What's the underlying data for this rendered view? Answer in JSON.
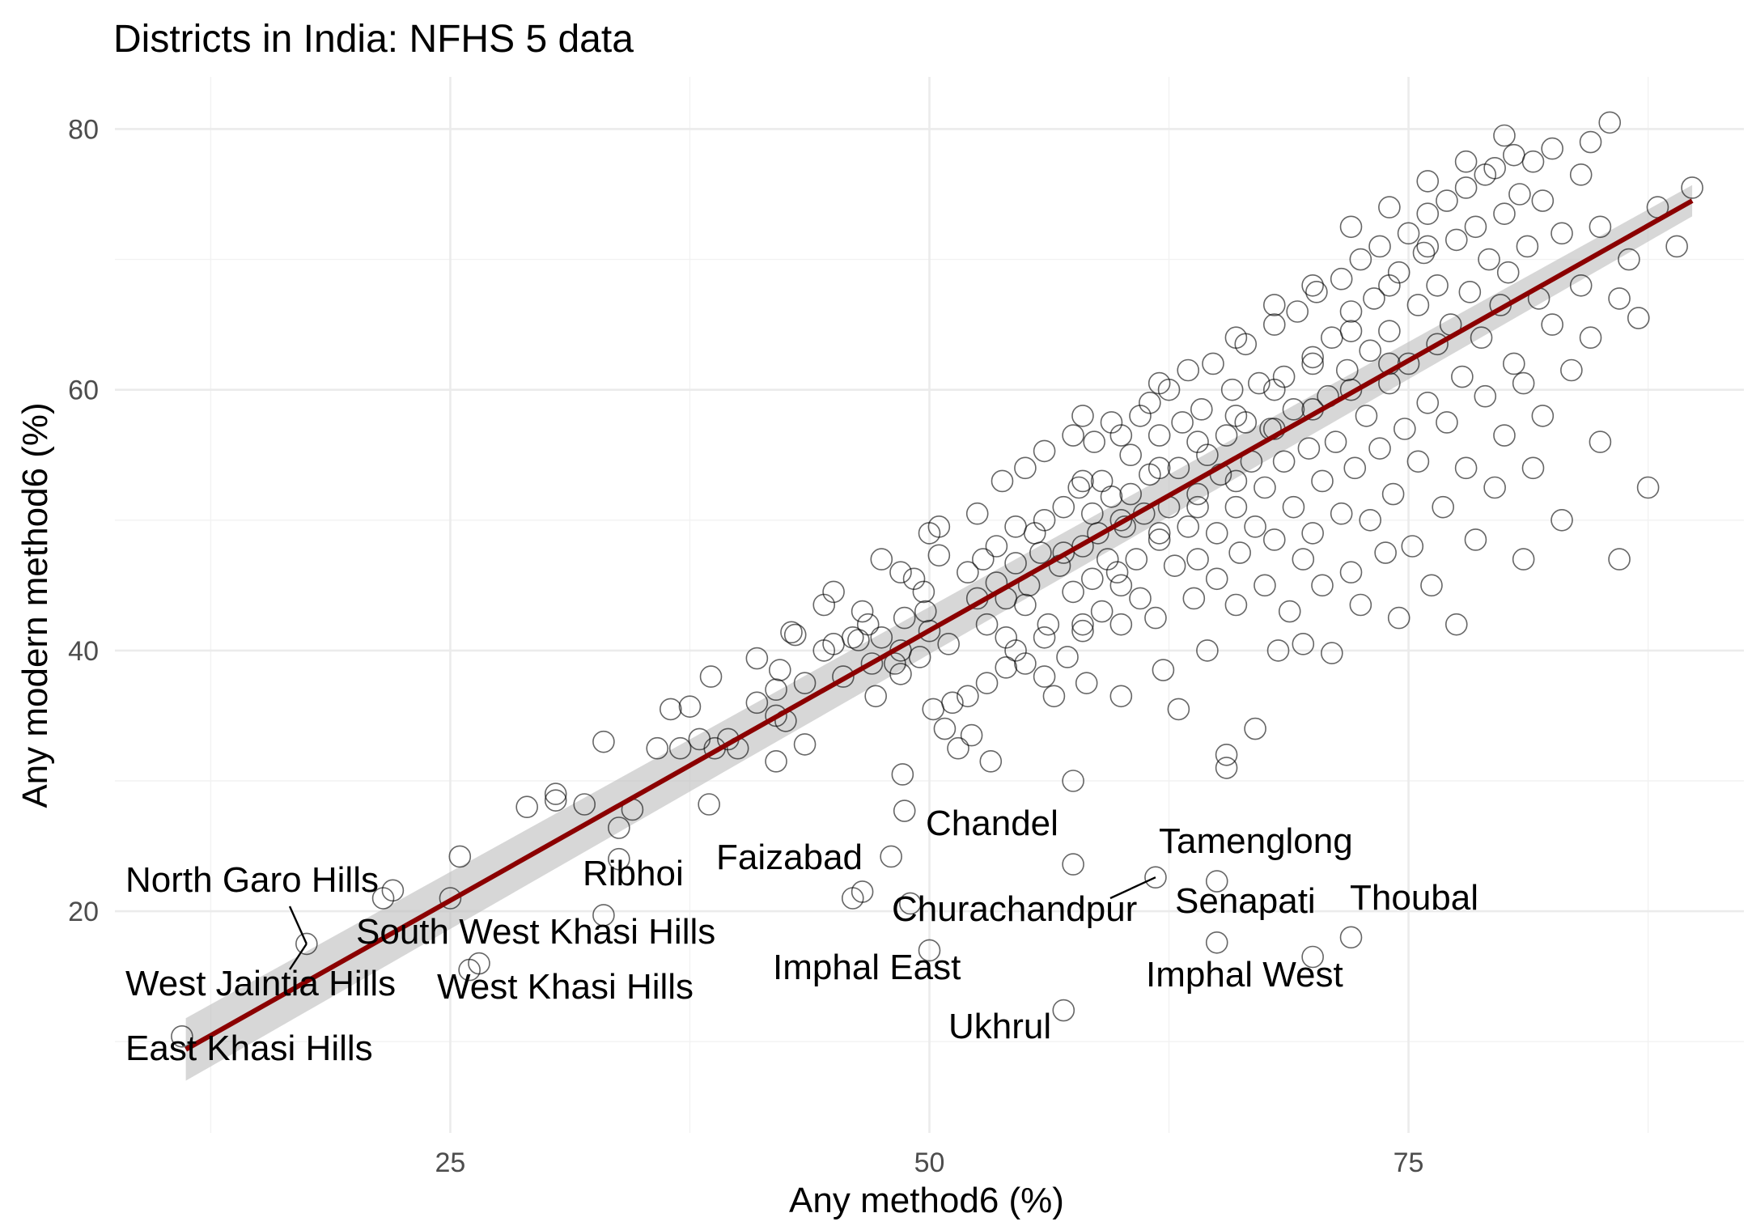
{
  "chart_data": {
    "type": "scatter",
    "title": "Districts in India: NFHS 5 data",
    "xlabel": "Any method6 (%)",
    "ylabel": "Any modern method6 (%)",
    "xlim": [
      7.5,
      92.5
    ],
    "ylim": [
      3,
      84
    ],
    "x_ticks": [
      25,
      50,
      75
    ],
    "y_ticks": [
      20,
      40,
      60,
      80
    ],
    "x_minor": [
      12.5,
      37.5,
      62.5,
      87.5
    ],
    "y_minor": [
      10,
      30,
      50,
      70
    ],
    "grid": true,
    "legend": "none",
    "fit_line": {
      "x": [
        11.2,
        89.8
      ],
      "y": [
        9.4,
        74.5
      ],
      "se_lo": [
        7.0,
        73.3
      ],
      "se_hi": [
        11.8,
        75.7
      ],
      "color": "#8b0000"
    },
    "labeled_points": [
      {
        "name": "North Garo Hills",
        "x": 17.5,
        "y": 17.5
      },
      {
        "name": "West Jaintia Hills",
        "x": 17.5,
        "y": 17.5
      },
      {
        "name": "South West Khasi Hills",
        "x": 22.0,
        "y": 21.6
      },
      {
        "name": "East Khasi Hills",
        "x": 11.0,
        "y": 10.4
      },
      {
        "name": "West Khasi Hills",
        "x": 26.2,
        "y": 15.7
      },
      {
        "name": "Ribhoi",
        "x": 33.0,
        "y": 19.7
      },
      {
        "name": "Faizabad",
        "x": 46.0,
        "y": 21.6
      },
      {
        "name": "Chandel",
        "x": 56.5,
        "y": 23.6
      },
      {
        "name": "Churachandpur",
        "x": 50.0,
        "y": 17.0
      },
      {
        "name": "Imphal East",
        "x": 48.5,
        "y": 20.6
      },
      {
        "name": "Ukhrul",
        "x": 57.0,
        "y": 12.4
      },
      {
        "name": "Tamenglong",
        "x": 61.8,
        "y": 22.6
      },
      {
        "name": "Senapati",
        "x": 65.0,
        "y": 22.3
      },
      {
        "name": "Imphal West",
        "x": 65.0,
        "y": 17.6
      },
      {
        "name": "Thoubal",
        "x": 72.0,
        "y": 18.0
      }
    ],
    "points": [
      [
        70.0,
        16.5
      ],
      [
        17.5,
        17.5
      ],
      [
        11.0,
        10.4
      ],
      [
        26.5,
        16.0
      ],
      [
        26.0,
        15.5
      ],
      [
        22.0,
        21.6
      ],
      [
        21.5,
        21.0
      ],
      [
        25.0,
        21.0
      ],
      [
        25.5,
        24.2
      ],
      [
        29.0,
        28.0
      ],
      [
        30.5,
        29.0
      ],
      [
        30.5,
        28.5
      ],
      [
        32.0,
        28.2
      ],
      [
        33.0,
        33.0
      ],
      [
        33.0,
        19.7
      ],
      [
        33.8,
        26.4
      ],
      [
        33.8,
        24.0
      ],
      [
        34.5,
        27.8
      ],
      [
        35.8,
        32.5
      ],
      [
        36.5,
        35.5
      ],
      [
        37.0,
        32.5
      ],
      [
        37.5,
        35.7
      ],
      [
        38.0,
        33.2
      ],
      [
        38.5,
        28.2
      ],
      [
        38.6,
        38.0
      ],
      [
        38.8,
        32.5
      ],
      [
        39.5,
        33.2
      ],
      [
        40.0,
        32.5
      ],
      [
        41.0,
        36.0
      ],
      [
        41.0,
        39.4
      ],
      [
        42.0,
        35.0
      ],
      [
        42.0,
        31.5
      ],
      [
        42.0,
        37.0
      ],
      [
        42.2,
        38.5
      ],
      [
        42.5,
        34.6
      ],
      [
        42.8,
        41.4
      ],
      [
        43.0,
        41.2
      ],
      [
        43.5,
        32.8
      ],
      [
        43.5,
        37.5
      ],
      [
        44.5,
        40.0
      ],
      [
        44.5,
        43.5
      ],
      [
        45.0,
        44.5
      ],
      [
        45.0,
        40.5
      ],
      [
        45.5,
        38.0
      ],
      [
        46.0,
        41.0
      ],
      [
        46.0,
        21.0
      ],
      [
        46.3,
        40.8
      ],
      [
        46.5,
        43.0
      ],
      [
        46.5,
        21.5
      ],
      [
        46.8,
        42.0
      ],
      [
        47.0,
        39.0
      ],
      [
        47.2,
        36.5
      ],
      [
        47.5,
        47.0
      ],
      [
        47.5,
        41.0
      ],
      [
        48.0,
        24.2
      ],
      [
        48.2,
        39.0
      ],
      [
        48.5,
        38.2
      ],
      [
        48.5,
        40.0
      ],
      [
        48.7,
        42.5
      ],
      [
        48.5,
        46.0
      ],
      [
        48.6,
        30.5
      ],
      [
        48.7,
        27.7
      ],
      [
        49.0,
        20.6
      ],
      [
        49.2,
        45.5
      ],
      [
        49.5,
        39.5
      ],
      [
        49.7,
        44.5
      ],
      [
        49.8,
        43.0
      ],
      [
        50.0,
        41.5
      ],
      [
        50.0,
        49.0
      ],
      [
        50.2,
        35.5
      ],
      [
        50.5,
        49.5
      ],
      [
        50.5,
        47.3
      ],
      [
        50.0,
        17.0
      ],
      [
        50.8,
        34.0
      ],
      [
        51.0,
        40.5
      ],
      [
        51.2,
        36.0
      ],
      [
        51.5,
        32.5
      ],
      [
        52.0,
        36.5
      ],
      [
        52.2,
        33.5
      ],
      [
        52.5,
        44.0
      ],
      [
        52.5,
        50.5
      ],
      [
        52.8,
        47.0
      ],
      [
        53.0,
        42.0
      ],
      [
        53.0,
        37.5
      ],
      [
        53.2,
        31.5
      ],
      [
        53.5,
        48.0
      ],
      [
        53.5,
        45.2
      ],
      [
        53.8,
        53.0
      ],
      [
        54.0,
        41.0
      ],
      [
        54.0,
        38.7
      ],
      [
        54.5,
        49.5
      ],
      [
        54.5,
        46.7
      ],
      [
        54.5,
        40.0
      ],
      [
        55.0,
        54.0
      ],
      [
        55.0,
        43.5
      ],
      [
        55.0,
        39.0
      ],
      [
        55.2,
        45.0
      ],
      [
        55.5,
        49.0
      ],
      [
        55.8,
        47.5
      ],
      [
        56.0,
        55.3
      ],
      [
        56.0,
        38.0
      ],
      [
        56.2,
        42.0
      ],
      [
        56.5,
        36.5
      ],
      [
        56.8,
        46.5
      ],
      [
        57.0,
        51.0
      ],
      [
        57.0,
        47.5
      ],
      [
        57.2,
        39.5
      ],
      [
        57.5,
        44.5
      ],
      [
        57.5,
        56.5
      ],
      [
        57.8,
        52.5
      ],
      [
        57.5,
        30.0
      ],
      [
        57.5,
        23.6
      ],
      [
        57.0,
        12.4
      ],
      [
        58.0,
        48.0
      ],
      [
        58.0,
        41.5
      ],
      [
        58.2,
        37.5
      ],
      [
        58.5,
        50.5
      ],
      [
        58.5,
        45.5
      ],
      [
        58.6,
        56.0
      ],
      [
        58.8,
        49.0
      ],
      [
        59.0,
        53.0
      ],
      [
        59.0,
        43.0
      ],
      [
        59.3,
        47.0
      ],
      [
        59.5,
        51.8
      ],
      [
        59.5,
        57.5
      ],
      [
        59.8,
        46.0
      ],
      [
        60.0,
        42.0
      ],
      [
        60.0,
        36.5
      ],
      [
        60.2,
        49.5
      ],
      [
        60.5,
        55.0
      ],
      [
        60.5,
        52.0
      ],
      [
        60.8,
        47.0
      ],
      [
        61.0,
        58.0
      ],
      [
        61.0,
        44.0
      ],
      [
        61.2,
        50.5
      ],
      [
        61.5,
        53.5
      ],
      [
        61.5,
        59.0
      ],
      [
        61.8,
        42.5
      ],
      [
        62.0,
        48.5
      ],
      [
        62.0,
        56.5
      ],
      [
        62.2,
        38.5
      ],
      [
        62.5,
        51.0
      ],
      [
        62.5,
        60.0
      ],
      [
        62.8,
        46.5
      ],
      [
        63.0,
        35.5
      ],
      [
        63.0,
        54.0
      ],
      [
        63.2,
        57.5
      ],
      [
        63.5,
        49.5
      ],
      [
        63.5,
        61.5
      ],
      [
        63.8,
        44.0
      ],
      [
        64.0,
        52.0
      ],
      [
        64.0,
        47.0
      ],
      [
        64.2,
        58.5
      ],
      [
        64.5,
        40.0
      ],
      [
        64.5,
        55.0
      ],
      [
        64.8,
        62.0
      ],
      [
        65.0,
        49.0
      ],
      [
        65.0,
        45.5
      ],
      [
        65.2,
        53.5
      ],
      [
        65.5,
        56.5
      ],
      [
        65.5,
        32.0
      ],
      [
        65.5,
        31.0
      ],
      [
        65.8,
        60.0
      ],
      [
        66.0,
        51.0
      ],
      [
        66.0,
        43.5
      ],
      [
        66.2,
        47.5
      ],
      [
        66.5,
        57.5
      ],
      [
        66.5,
        63.5
      ],
      [
        66.8,
        54.5
      ],
      [
        67.0,
        49.5
      ],
      [
        67.0,
        34.0
      ],
      [
        67.2,
        60.5
      ],
      [
        67.5,
        52.5
      ],
      [
        67.5,
        45.0
      ],
      [
        67.8,
        57.0
      ],
      [
        68.0,
        65.0
      ],
      [
        68.0,
        48.5
      ],
      [
        68.2,
        40.0
      ],
      [
        68.5,
        54.5
      ],
      [
        68.5,
        61.0
      ],
      [
        68.8,
        43.0
      ],
      [
        69.0,
        58.5
      ],
      [
        69.0,
        51.0
      ],
      [
        69.2,
        66.0
      ],
      [
        69.5,
        47.0
      ],
      [
        69.5,
        40.5
      ],
      [
        69.8,
        55.5
      ],
      [
        70.0,
        62.5
      ],
      [
        70.0,
        49.0
      ],
      [
        70.2,
        67.5
      ],
      [
        70.5,
        53.0
      ],
      [
        70.5,
        45.0
      ],
      [
        70.8,
        59.5
      ],
      [
        71.0,
        64.0
      ],
      [
        71.0,
        39.8
      ],
      [
        71.2,
        56.0
      ],
      [
        71.5,
        68.5
      ],
      [
        71.5,
        50.5
      ],
      [
        71.8,
        61.5
      ],
      [
        72.0,
        46.0
      ],
      [
        72.0,
        66.0
      ],
      [
        72.2,
        54.0
      ],
      [
        72.5,
        70.0
      ],
      [
        72.5,
        43.5
      ],
      [
        72.8,
        58.0
      ],
      [
        73.0,
        63.0
      ],
      [
        73.0,
        50.0
      ],
      [
        73.2,
        67.0
      ],
      [
        73.5,
        55.5
      ],
      [
        73.5,
        71.0
      ],
      [
        73.8,
        47.5
      ],
      [
        74.0,
        60.5
      ],
      [
        74.0,
        64.5
      ],
      [
        74.2,
        52.0
      ],
      [
        74.5,
        69.0
      ],
      [
        74.5,
        42.5
      ],
      [
        74.8,
        57.0
      ],
      [
        75.0,
        72.0
      ],
      [
        75.0,
        62.0
      ],
      [
        75.2,
        48.0
      ],
      [
        75.5,
        66.5
      ],
      [
        75.5,
        54.5
      ],
      [
        75.8,
        70.5
      ],
      [
        76.0,
        59.0
      ],
      [
        76.0,
        73.5
      ],
      [
        76.2,
        45.0
      ],
      [
        76.5,
        63.5
      ],
      [
        76.5,
        68.0
      ],
      [
        76.8,
        51.0
      ],
      [
        77.0,
        74.5
      ],
      [
        77.0,
        57.5
      ],
      [
        77.2,
        65.0
      ],
      [
        77.5,
        71.5
      ],
      [
        77.5,
        42.0
      ],
      [
        77.8,
        61.0
      ],
      [
        78.0,
        75.5
      ],
      [
        78.0,
        54.0
      ],
      [
        78.2,
        67.5
      ],
      [
        78.5,
        72.5
      ],
      [
        78.5,
        48.5
      ],
      [
        78.8,
        64.0
      ],
      [
        79.0,
        76.5
      ],
      [
        79.0,
        59.5
      ],
      [
        79.2,
        70.0
      ],
      [
        79.5,
        77.0
      ],
      [
        79.5,
        52.5
      ],
      [
        79.8,
        66.5
      ],
      [
        80.0,
        73.5
      ],
      [
        80.0,
        56.5
      ],
      [
        80.2,
        69.0
      ],
      [
        80.5,
        78.0
      ],
      [
        80.5,
        62.0
      ],
      [
        80.8,
        75.0
      ],
      [
        81.0,
        60.5
      ],
      [
        81.0,
        47.0
      ],
      [
        81.2,
        71.0
      ],
      [
        81.5,
        77.5
      ],
      [
        81.5,
        54.0
      ],
      [
        81.8,
        67.0
      ],
      [
        82.0,
        74.5
      ],
      [
        82.0,
        58.0
      ],
      [
        82.5,
        78.5
      ],
      [
        82.5,
        65.0
      ],
      [
        83.0,
        72.0
      ],
      [
        83.0,
        50.0
      ],
      [
        83.5,
        61.5
      ],
      [
        84.0,
        76.5
      ],
      [
        84.0,
        68.0
      ],
      [
        84.5,
        79.0
      ],
      [
        84.5,
        64.0
      ],
      [
        85.0,
        72.5
      ],
      [
        85.0,
        56.0
      ],
      [
        85.5,
        80.5
      ],
      [
        86.0,
        67.0
      ],
      [
        86.0,
        47.0
      ],
      [
        86.5,
        70.0
      ],
      [
        87.0,
        65.5
      ],
      [
        87.5,
        52.5
      ],
      [
        88.0,
        74.0
      ],
      [
        89.0,
        71.0
      ],
      [
        89.8,
        75.5
      ],
      [
        62.0,
        54.0
      ],
      [
        60.0,
        50.0
      ],
      [
        58.0,
        53.0
      ],
      [
        56.0,
        50.0
      ],
      [
        54.0,
        44.0
      ],
      [
        52.0,
        46.0
      ],
      [
        66.0,
        58.0
      ],
      [
        68.0,
        60.0
      ],
      [
        70.0,
        58.5
      ],
      [
        72.0,
        60.0
      ],
      [
        74.0,
        62.0
      ],
      [
        64.0,
        56.0
      ],
      [
        62.0,
        60.5
      ],
      [
        60.0,
        56.5
      ],
      [
        58.0,
        58.0
      ],
      [
        66.0,
        64.0
      ],
      [
        68.0,
        66.5
      ],
      [
        70.0,
        68.0
      ],
      [
        72.0,
        72.5
      ],
      [
        74.0,
        74.0
      ],
      [
        76.0,
        76.0
      ],
      [
        78.0,
        77.5
      ],
      [
        80.0,
        79.5
      ],
      [
        76.0,
        71.0
      ],
      [
        74.0,
        68.0
      ],
      [
        72.0,
        64.5
      ],
      [
        70.0,
        62.0
      ],
      [
        68.0,
        57.0
      ],
      [
        66.0,
        53.0
      ],
      [
        64.0,
        51.0
      ],
      [
        62.0,
        49.0
      ],
      [
        60.0,
        45.0
      ],
      [
        58.0,
        42.0
      ],
      [
        56.0,
        41.0
      ],
      [
        65.0,
        22.3
      ],
      [
        72.0,
        18.0
      ],
      [
        65.0,
        17.6
      ],
      [
        61.8,
        22.6
      ]
    ]
  }
}
